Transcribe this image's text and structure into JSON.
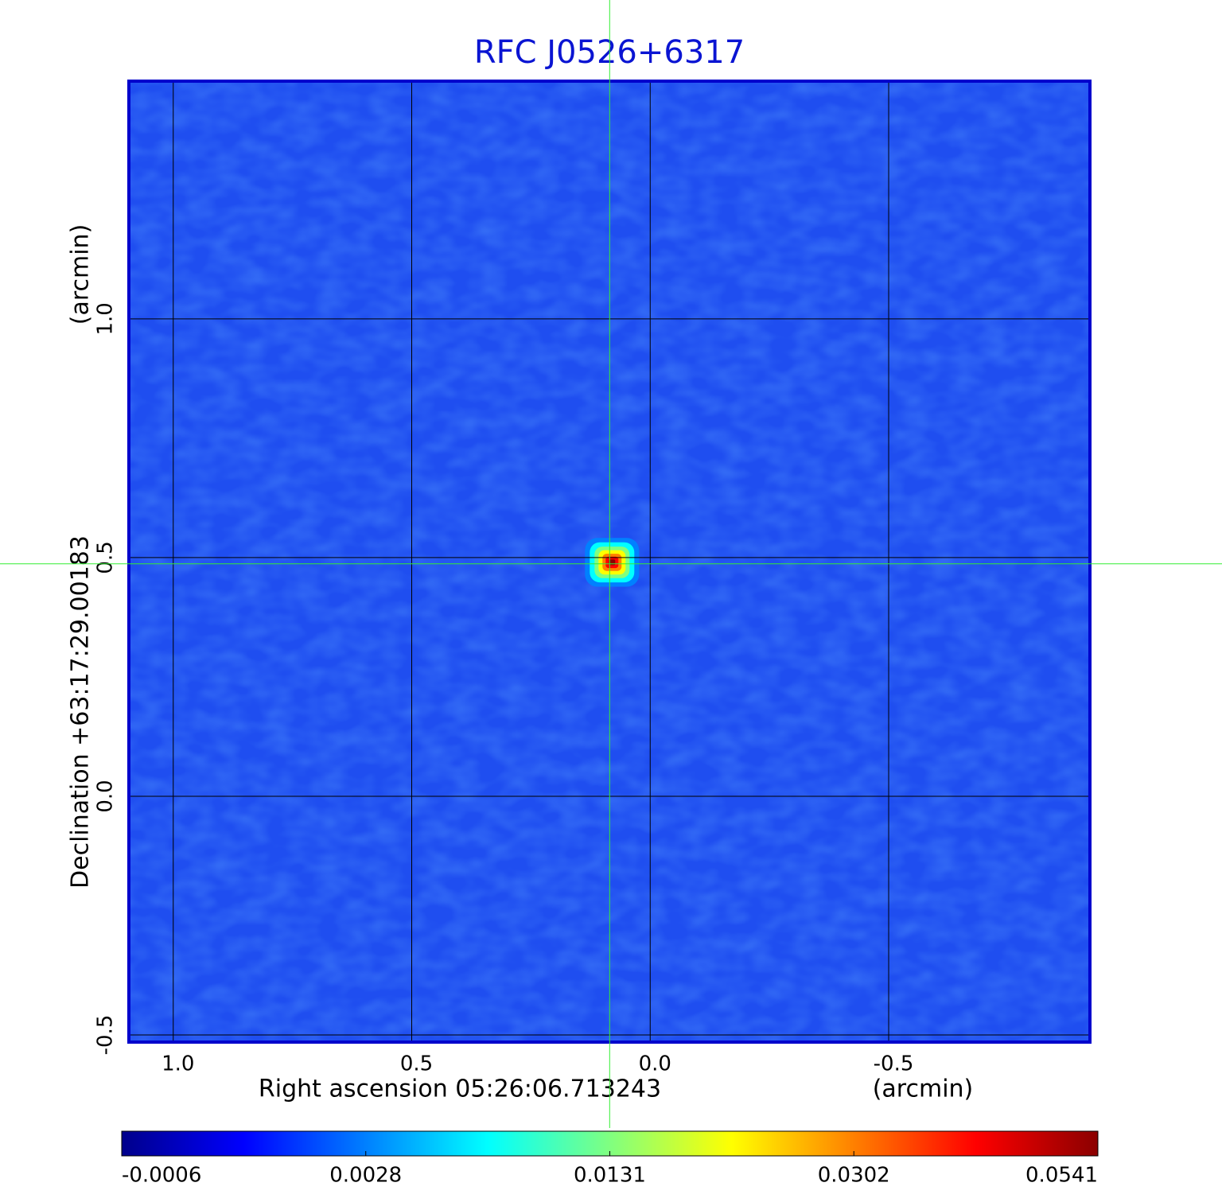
{
  "chart_data": {
    "type": "image",
    "title": "RFC J0526+6317",
    "x_label": "Right ascension  05:26:06.713243",
    "x_unit_label": "(arcmin)",
    "y_label": "Declination  +63:17:29.00183",
    "y_unit_label": "(arcmin)",
    "xlim": [
      1.093,
      -0.922
    ],
    "ylim": [
      -0.515,
      1.498
    ],
    "xticks": [
      {
        "value": 1,
        "label": "1.0"
      },
      0.5,
      {
        "value": 0,
        "label": "0.0"
      },
      -0.5
    ],
    "yticks": [
      {
        "value": -0.5,
        "label": "-0.5"
      },
      {
        "value": 0,
        "label": "0.0"
      },
      0.5,
      {
        "value": 1,
        "label": "1.0"
      }
    ],
    "grid": true,
    "background_color": "#1f4ef0",
    "frame_color": "#0000cc",
    "title_color": "#0a14d2",
    "source": {
      "x": 0.08,
      "y": 0.49,
      "peak": 0.0541
    },
    "crosshair": {
      "x": 0.085,
      "y": 0.487,
      "color": "#33ee33"
    },
    "colormap": [
      "#00008b",
      "#0000ff",
      "#0080ff",
      "#00ffff",
      "#80ff80",
      "#ffff00",
      "#ff8000",
      "#ff0000",
      "#8b0000"
    ],
    "colorbar_ticks": [
      -0.0006,
      0.0028,
      0.0131,
      0.0302,
      0.0541
    ]
  }
}
